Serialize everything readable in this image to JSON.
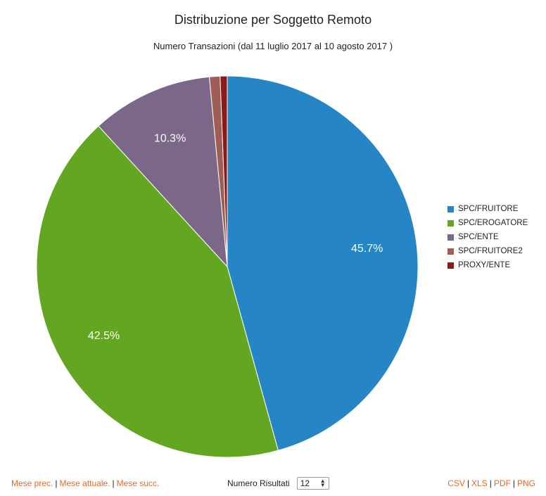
{
  "chart_data": {
    "type": "pie",
    "title": "Distribuzione per Soggetto Remoto",
    "subtitle": "Numero Transazioni (dal 11 luglio 2017 al 10 agosto 2017 )",
    "categories": [
      "SPC/FRUITORE",
      "SPC/EROGATORE",
      "SPC/ENTE",
      "SPC/FRUITORE2",
      "PROXY/ENTE"
    ],
    "values": [
      45.7,
      42.5,
      10.3,
      0.9,
      0.6
    ],
    "labels": [
      "45.7%",
      "42.5%",
      "10.3%",
      "",
      ""
    ],
    "colors": [
      "#2585c5",
      "#63a621",
      "#7b6888",
      "#a05d56",
      "#8b1a1a"
    ],
    "legend_position": "right"
  },
  "footer": {
    "nav": {
      "prev": "Mese prec.",
      "current": "Mese attuale.",
      "next": "Mese succ.",
      "sep": "|"
    },
    "results_label": "Numero Risultati",
    "results_value": "12",
    "export": {
      "csv": "CSV",
      "xls": "XLS",
      "pdf": "PDF",
      "png": "PNG"
    }
  },
  "icons": {
    "select_arrows": "up-down-caret-icon"
  }
}
